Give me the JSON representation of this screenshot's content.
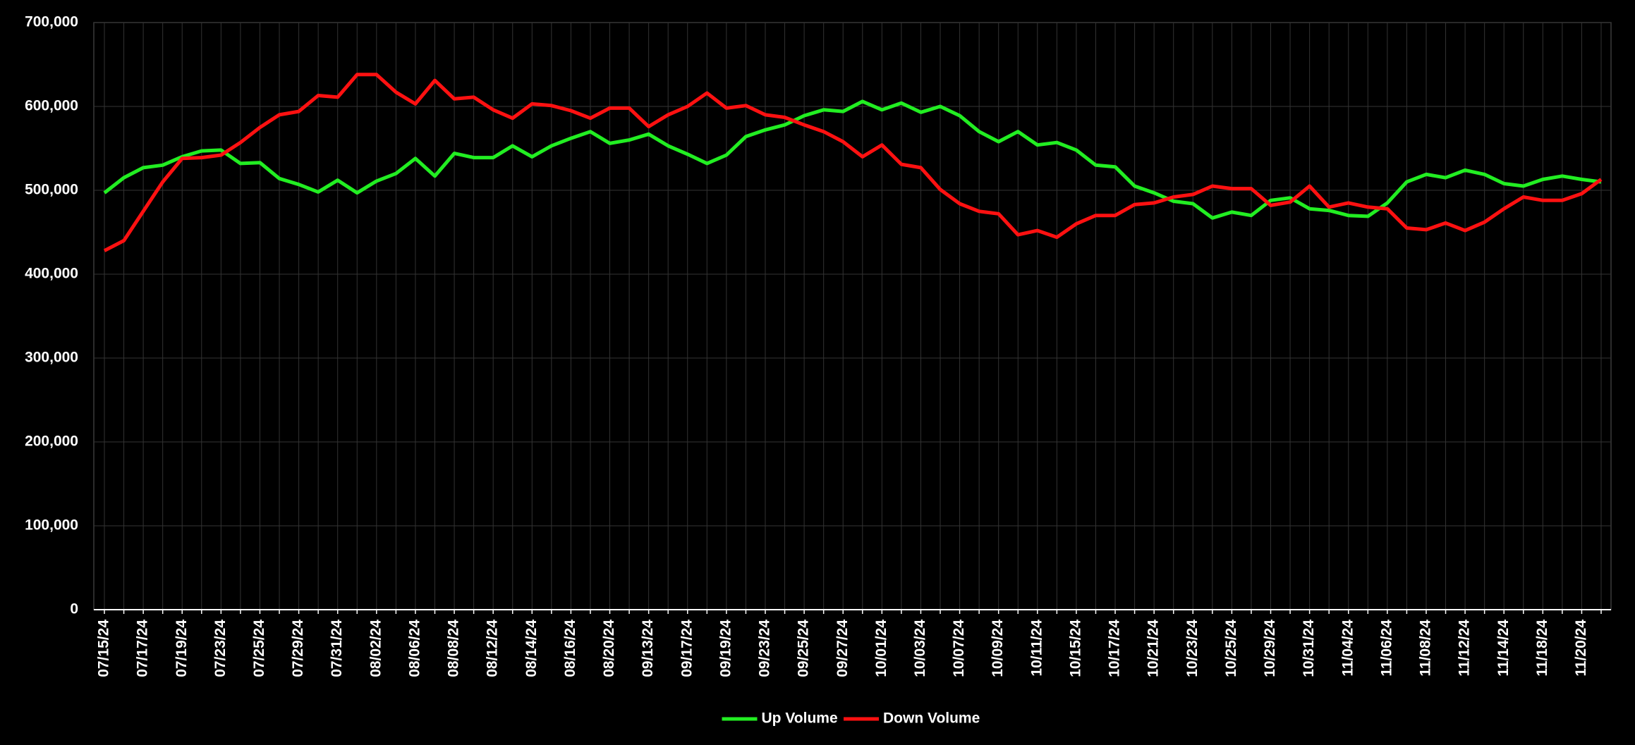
{
  "chart_data": {
    "type": "line",
    "categories": [
      "07/15/24",
      null,
      "07/17/24",
      null,
      "07/19/24",
      null,
      "07/23/24",
      null,
      "07/25/24",
      null,
      "07/29/24",
      null,
      "07/31/24",
      null,
      "08/02/24",
      null,
      "08/06/24",
      null,
      "08/08/24",
      null,
      "08/12/24",
      null,
      "08/14/24",
      null,
      "08/16/24",
      null,
      "08/20/24",
      null,
      "09/13/24",
      null,
      "09/17/24",
      null,
      "09/19/24",
      null,
      "09/23/24",
      null,
      "09/25/24",
      null,
      "09/27/24",
      null,
      "10/01/24",
      null,
      "10/03/24",
      null,
      "10/07/24",
      null,
      "10/09/24",
      null,
      "10/11/24",
      null,
      "10/15/24",
      null,
      "10/17/24",
      null,
      "10/21/24",
      null,
      "10/23/24",
      null,
      "10/25/24",
      null,
      "10/29/24",
      null,
      "10/31/24",
      null,
      "11/04/24",
      null,
      "11/06/24",
      null,
      "11/08/24",
      null,
      "11/12/24",
      null,
      "11/14/24",
      null,
      "11/18/24",
      null,
      "11/20/24",
      null
    ],
    "series": [
      {
        "name": "Up Volume",
        "color": "#22ee22",
        "values": [
          497000,
          515000,
          527000,
          530000,
          540000,
          547000,
          548000,
          532000,
          533000,
          514000,
          507000,
          498000,
          512000,
          497000,
          511000,
          520000,
          538000,
          517000,
          544000,
          539000,
          539000,
          553000,
          540000,
          553000,
          562000,
          570000,
          556000,
          560000,
          567000,
          553000,
          543000,
          532000,
          542000,
          564000,
          572000,
          578000,
          589000,
          596000,
          594000,
          606000,
          596000,
          604000,
          593000,
          600000,
          589000,
          570000,
          558000,
          570000,
          554000,
          557000,
          548000,
          530000,
          528000,
          505000,
          497000,
          487000,
          484000,
          467000,
          474000,
          470000,
          488000,
          491000,
          478000,
          476000,
          470000,
          469000,
          485000,
          510000,
          519000,
          515000,
          524000,
          519000,
          508000,
          505000,
          513000,
          517000,
          513000,
          510000
        ]
      },
      {
        "name": "Down Volume",
        "color": "#ff1111",
        "values": [
          428000,
          440000,
          475000,
          510000,
          538000,
          539000,
          542000,
          557000,
          575000,
          590000,
          594000,
          613000,
          611000,
          638000,
          638000,
          617000,
          603000,
          631000,
          609000,
          611000,
          596000,
          586000,
          603000,
          601000,
          595000,
          586000,
          598000,
          598000,
          576000,
          590000,
          600000,
          616000,
          598000,
          601000,
          590000,
          587000,
          578000,
          570000,
          558000,
          540000,
          554000,
          531000,
          527000,
          501000,
          484000,
          475000,
          472000,
          447000,
          452000,
          444000,
          460000,
          470000,
          470000,
          483000,
          485000,
          492000,
          495000,
          505000,
          502000,
          502000,
          482000,
          486000,
          505000,
          480000,
          485000,
          480000,
          478000,
          455000,
          453000,
          461000,
          452000,
          462000,
          478000,
          492000,
          488000,
          488000,
          496000,
          513000
        ]
      }
    ],
    "ylim": [
      0,
      700000
    ],
    "yticks": [
      0,
      {
        "value": 100000,
        "label": "100,000"
      },
      {
        "value": 200000,
        "label": "200,000"
      },
      {
        "value": 300000,
        "label": "300,000"
      },
      {
        "value": 400000,
        "label": "400,000"
      },
      {
        "value": 500000,
        "label": "500,000"
      },
      {
        "value": 600000,
        "label": "600,000"
      },
      {
        "value": 700000,
        "label": "700,000"
      }
    ],
    "grid": true,
    "legend": "bottom"
  }
}
